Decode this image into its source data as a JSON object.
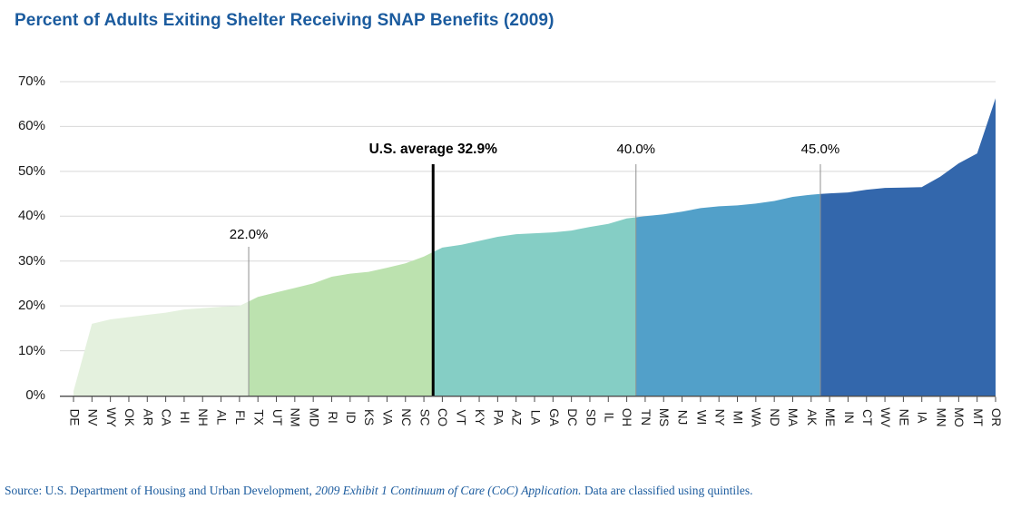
{
  "title": "Percent of Adults Exiting Shelter Receiving SNAP Benefits (2009)",
  "source": {
    "prefix": "Source: U.S. Department of Housing and Urban Development, ",
    "italic": "2009 Exhibit 1 Continuum of Care (CoC) Application.",
    "suffix": " Data are classified using quintiles."
  },
  "colors": {
    "title_blue": "#1b5b9e",
    "source_blue": "#1b5b9e",
    "gridline": "#d8d8d8",
    "axis": "#4a4a4a",
    "annotation_line": "#8f8f8f",
    "average_line": "#000000"
  },
  "chart_data": {
    "type": "area",
    "title": "Percent of Adults Exiting Shelter Receiving SNAP Benefits (2009)",
    "xlabel": "",
    "ylabel": "Percent of adults exiting shelter receiving SNAP benefits",
    "ylim": [
      0,
      70
    ],
    "grid": true,
    "legend": false,
    "y_ticks": [
      "0%",
      "10%",
      "20%",
      "30%",
      "40%",
      "50%",
      "60%",
      "70%"
    ],
    "categories": [
      "DE",
      "NV",
      "WY",
      "OK",
      "AR",
      "CA",
      "HI",
      "NH",
      "AL",
      "FL",
      "TX",
      "UT",
      "NM",
      "MD",
      "RI",
      "ID",
      "KS",
      "VA",
      "NC",
      "SC",
      "CO",
      "VT",
      "KY",
      "PA",
      "AZ",
      "LA",
      "GA",
      "DC",
      "SD",
      "IL",
      "OH",
      "TN",
      "MS",
      "NJ",
      "WI",
      "NY",
      "MI",
      "WA",
      "ND",
      "MA",
      "AK",
      "ME",
      "IN",
      "CT",
      "WV",
      "NE",
      "IA",
      "MN",
      "MO",
      "MT",
      "OR"
    ],
    "values": [
      1,
      16,
      17,
      17.5,
      18,
      18.5,
      19.2,
      19.5,
      19.8,
      20,
      22,
      23,
      24,
      25,
      26.5,
      27.2,
      27.6,
      28.5,
      29.5,
      31,
      33,
      33.6,
      34.5,
      35.4,
      36,
      36.2,
      36.4,
      36.8,
      37.6,
      38.3,
      39.5,
      40,
      40.4,
      41,
      41.8,
      42.2,
      42.4,
      42.8,
      43.4,
      44.3,
      44.8,
      45.1,
      45.3,
      45.9,
      46.3,
      46.4,
      46.5,
      48.8,
      51.8,
      54,
      66.3
    ],
    "quintiles": [
      {
        "name": "quintile-1",
        "color": "#e4f1de",
        "from": "DE",
        "to": "FL"
      },
      {
        "name": "quintile-2",
        "color": "#bce2af",
        "from": "TX",
        "to": "SC"
      },
      {
        "name": "quintile-3",
        "color": "#85cec5",
        "from": "CO",
        "to": "OH"
      },
      {
        "name": "quintile-4",
        "color": "#52a0c9",
        "from": "TN",
        "to": "AK"
      },
      {
        "name": "quintile-5",
        "color": "#3367ac",
        "from": "ME",
        "to": "OR"
      }
    ],
    "annotations": [
      {
        "text": "22.0%",
        "after_state": "FL",
        "style": "thin",
        "bold": false,
        "position": "low"
      },
      {
        "text": "U.S. average 32.9%",
        "after_state": "SC",
        "style": "thick-black",
        "bold": true,
        "position": "high"
      },
      {
        "text": "40.0%",
        "after_state": "OH",
        "style": "thin",
        "bold": false,
        "position": "high"
      },
      {
        "text": "45.0%",
        "after_state": "AK",
        "style": "thin",
        "bold": false,
        "position": "high"
      }
    ]
  }
}
